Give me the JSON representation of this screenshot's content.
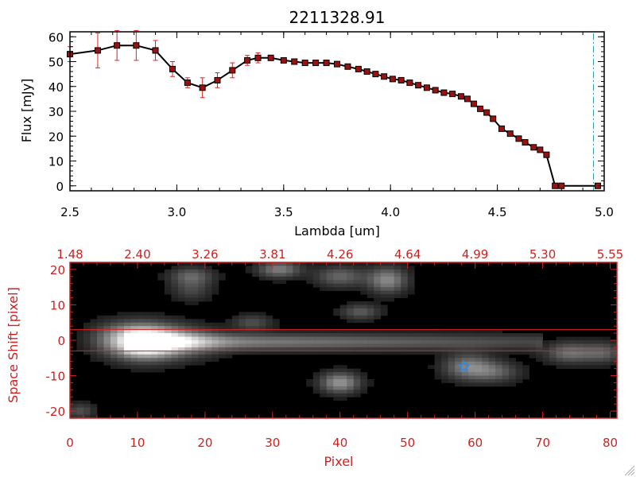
{
  "chart_data": [
    {
      "type": "line",
      "title": "2211328.91",
      "xlabel": "Lambda [um]",
      "ylabel": "Flux [mJy]",
      "xlim": [
        2.5,
        5.0
      ],
      "ylim": [
        -2,
        62
      ],
      "xticks": [
        "2.5",
        "3.0",
        "3.5",
        "4.0",
        "4.5",
        "5.0"
      ],
      "xtick_values": [
        2.5,
        3.0,
        3.5,
        4.0,
        4.5,
        5.0
      ],
      "yticks": [
        "0",
        "10",
        "20",
        "30",
        "40",
        "50",
        "60"
      ],
      "ytick_values": [
        0,
        10,
        20,
        30,
        40,
        50,
        60
      ],
      "series": [
        {
          "marker": "square",
          "line_color": "#000000",
          "marker_color": "#991111",
          "errorbar_color": "#dd2222",
          "x": [
            2.5,
            2.63,
            2.72,
            2.81,
            2.9,
            2.98,
            3.05,
            3.12,
            3.19,
            3.26,
            3.33,
            3.38,
            3.44,
            3.5,
            3.55,
            3.6,
            3.65,
            3.7,
            3.75,
            3.8,
            3.85,
            3.89,
            3.93,
            3.97,
            4.01,
            4.05,
            4.09,
            4.13,
            4.17,
            4.21,
            4.25,
            4.29,
            4.33,
            4.36,
            4.39,
            4.42,
            4.45,
            4.48,
            4.52,
            4.56,
            4.6,
            4.63,
            4.67,
            4.7,
            4.73,
            4.77,
            4.8,
            4.97
          ],
          "y": [
            53,
            54.5,
            56.5,
            56.5,
            54.5,
            47,
            41.5,
            39.5,
            42.5,
            46.5,
            50.5,
            51.5,
            51.5,
            50.5,
            50,
            49.5,
            49.5,
            49.5,
            49,
            48,
            47,
            46,
            45,
            44,
            43,
            42.5,
            41.5,
            40.5,
            39.5,
            38.5,
            37.5,
            37,
            36,
            35,
            33,
            31,
            29.5,
            27,
            23,
            21,
            19,
            17.5,
            15.5,
            14.5,
            12.5,
            0,
            0,
            0
          ],
          "yerr": [
            3,
            7,
            6,
            6,
            4,
            3,
            2,
            4,
            3,
            3,
            2,
            2,
            1,
            1,
            1,
            1,
            1,
            1,
            1,
            1,
            1,
            1,
            1,
            1,
            1,
            1,
            1,
            1,
            1,
            1,
            1,
            1,
            1,
            1,
            1,
            1,
            1,
            1,
            1,
            1,
            1,
            1,
            1,
            1,
            1,
            0,
            0,
            0
          ]
        }
      ],
      "reference_line": {
        "x": 4.95,
        "style": "dash-dot",
        "color": "#2a9a9a"
      },
      "grid": false
    },
    {
      "type": "heatmap",
      "colormap": "grayscale",
      "background": "#000000",
      "xlabel": "Pixel",
      "ylabel": "Space Shift [pixel]",
      "xlim": [
        0,
        81
      ],
      "ylim": [
        -22,
        22
      ],
      "xticks": [
        "0",
        "10",
        "20",
        "30",
        "40",
        "50",
        "60",
        "70",
        "80"
      ],
      "xtick_values": [
        0,
        10,
        20,
        30,
        40,
        50,
        60,
        70,
        80
      ],
      "yticks": [
        "-20",
        "-10",
        "0",
        "10",
        "20"
      ],
      "ytick_values": [
        -20,
        -10,
        0,
        10,
        20
      ],
      "top_axis_labels": [
        "1.48",
        "2.40",
        "3.26",
        "3.81",
        "4.26",
        "4.64",
        "4.99",
        "5.30",
        "5.55"
      ],
      "horizontal_lines_y": [
        3,
        -3
      ],
      "line_color": "#dd2222",
      "axis_color": "#cc2222",
      "star_marker": {
        "x": 58.3,
        "y": -7.5,
        "color": "#3388dd"
      },
      "trace": {
        "x_start": 8,
        "x_end": 70,
        "y": -0.5
      },
      "blobs": [
        {
          "x": 11,
          "y": -0.5,
          "peak": 1.0,
          "sx": 3.2,
          "sy": 3.2
        },
        {
          "x": 16,
          "y": -0.5,
          "peak": 0.45,
          "sx": 4,
          "sy": 3
        },
        {
          "x": 7,
          "y": 0.5,
          "peak": 0.3,
          "sx": 3,
          "sy": 3
        },
        {
          "x": 18,
          "y": 18,
          "peak": 0.35,
          "sx": 2.2,
          "sy": 1.8
        },
        {
          "x": 31,
          "y": 20,
          "peak": 0.45,
          "sx": 2.2,
          "sy": 1.6
        },
        {
          "x": 40,
          "y": 18,
          "peak": 0.35,
          "sx": 2.5,
          "sy": 2
        },
        {
          "x": 47,
          "y": 17,
          "peak": 0.5,
          "sx": 2,
          "sy": 2.5
        },
        {
          "x": 43,
          "y": 8,
          "peak": 0.3,
          "sx": 2,
          "sy": 1.5
        },
        {
          "x": 27,
          "y": 5,
          "peak": 0.25,
          "sx": 2,
          "sy": 1.5
        },
        {
          "x": 40,
          "y": -12,
          "peak": 0.55,
          "sx": 2,
          "sy": 2
        },
        {
          "x": 59,
          "y": -7.5,
          "peak": 0.45,
          "sx": 2.5,
          "sy": 2.5
        },
        {
          "x": 63,
          "y": -9,
          "peak": 0.3,
          "sx": 2.5,
          "sy": 2
        },
        {
          "x": 74,
          "y": -3.5,
          "peak": 0.4,
          "sx": 2.5,
          "sy": 2
        },
        {
          "x": 79,
          "y": -3.5,
          "peak": 0.3,
          "sx": 2,
          "sy": 2
        },
        {
          "x": 1.5,
          "y": -20,
          "peak": 0.25,
          "sx": 1.5,
          "sy": 1.5
        },
        {
          "x": 18,
          "y": 14,
          "peak": 0.2,
          "sx": 2,
          "sy": 2
        }
      ]
    }
  ]
}
